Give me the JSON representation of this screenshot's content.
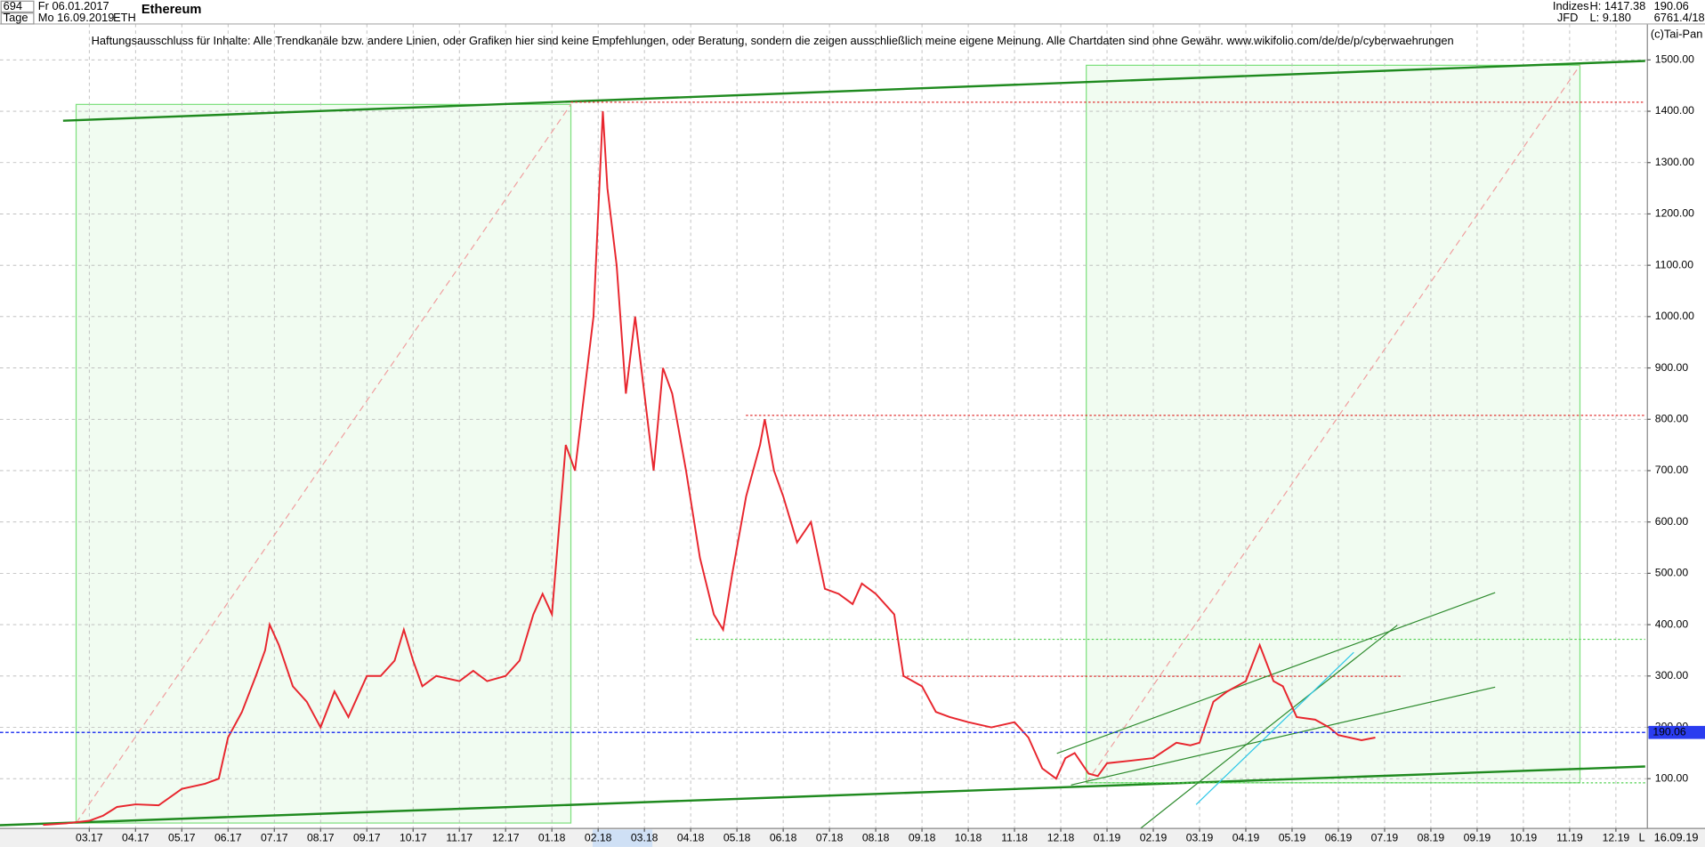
{
  "header": {
    "count": "694",
    "start": "Fr 06.01.2017",
    "period": "Tage",
    "end": "Mo 16.09.2019",
    "symbol": "ETH",
    "group": "Indizes",
    "source": "JFD",
    "high": "H: 1417.38",
    "low": "L: 9.180",
    "last": "190.06",
    "extra": "6761.4/18",
    "copyright": "(c)Tai-Pan"
  },
  "chart_data": {
    "type": "line",
    "title": "Ethereum",
    "annotation": "Haftungsausschluss für Inhalte: Alle Trendkanäle bzw. andere Linien, oder Grafiken hier sind keine Empfehlungen, oder Beratung, sondern die zeigen ausschließlich meine eigene Meinung. Alle Chartdaten sind ohne Gewähr.  www.wikifolio.com/de/de/p/cyberwaehrungen",
    "color": "#e8262e",
    "x": [
      1.0,
      1.5,
      2.0,
      2.3,
      2.6,
      3.0,
      3.5,
      4.0,
      4.5,
      4.8,
      5.0,
      5.3,
      5.6,
      5.8,
      5.9,
      6.1,
      6.4,
      6.7,
      7.0,
      7.3,
      7.6,
      8.0,
      8.3,
      8.6,
      8.8,
      9.0,
      9.2,
      9.5,
      10.0,
      10.3,
      10.6,
      11.0,
      11.3,
      11.6,
      11.8,
      12.0,
      12.3,
      12.5,
      12.7,
      12.9,
      13.0,
      13.1,
      13.2,
      13.4,
      13.6,
      13.8,
      14.0,
      14.2,
      14.4,
      14.6,
      14.9,
      15.2,
      15.5,
      15.7,
      15.9,
      16.2,
      16.5,
      16.6,
      16.8,
      17.0,
      17.3,
      17.6,
      17.9,
      18.2,
      18.5,
      18.7,
      19.0,
      19.4,
      19.6,
      20.0,
      20.3,
      20.6,
      21.0,
      21.5,
      22.0,
      22.3,
      22.6,
      22.9,
      23.1,
      23.3,
      23.6,
      23.8,
      24.0,
      24.5,
      25.0,
      25.5,
      25.8,
      26.0,
      26.3,
      26.6,
      27.0,
      27.3,
      27.6,
      27.8,
      28.1,
      28.5,
      28.8,
      29.0,
      29.5,
      29.8
    ],
    "values": [
      10,
      13,
      18,
      28,
      45,
      50,
      48,
      80,
      90,
      100,
      180,
      230,
      300,
      350,
      400,
      360,
      280,
      250,
      200,
      270,
      220,
      300,
      300,
      330,
      390,
      330,
      280,
      300,
      290,
      310,
      290,
      300,
      330,
      420,
      460,
      420,
      750,
      700,
      850,
      1000,
      1200,
      1400,
      1250,
      1100,
      850,
      1000,
      850,
      700,
      900,
      850,
      700,
      530,
      420,
      390,
      500,
      650,
      750,
      800,
      700,
      650,
      560,
      600,
      470,
      460,
      440,
      480,
      460,
      420,
      300,
      280,
      230,
      220,
      210,
      200,
      210,
      180,
      120,
      100,
      140,
      150,
      110,
      105,
      130,
      135,
      140,
      170,
      165,
      170,
      250,
      270,
      290,
      360,
      290,
      280,
      220,
      215,
      200,
      185,
      175,
      180
    ],
    "xlim": [
      0.07,
      35.68
    ],
    "ylim": [
      3,
      1570
    ],
    "xticks": [
      {
        "value": 2,
        "label": "03.17"
      },
      {
        "value": 3,
        "label": "04.17"
      },
      {
        "value": 4,
        "label": "05.17"
      },
      {
        "value": 5,
        "label": "06.17"
      },
      {
        "value": 6,
        "label": "07.17"
      },
      {
        "value": 7,
        "label": "08.17"
      },
      {
        "value": 8,
        "label": "09.17"
      },
      {
        "value": 9,
        "label": "10.17"
      },
      {
        "value": 10,
        "label": "11.17"
      },
      {
        "value": 11,
        "label": "12.17"
      },
      {
        "value": 12,
        "label": "01.18"
      },
      {
        "value": 13,
        "label": "02.18"
      },
      {
        "value": 14,
        "label": "03.18"
      },
      {
        "value": 15,
        "label": "04.18"
      },
      {
        "value": 16,
        "label": "05.18"
      },
      {
        "value": 17,
        "label": "06.18"
      },
      {
        "value": 18,
        "label": "07.18"
      },
      {
        "value": 19,
        "label": "08.18"
      },
      {
        "value": 20,
        "label": "09.18"
      },
      {
        "value": 21,
        "label": "10.18"
      },
      {
        "value": 22,
        "label": "11.18"
      },
      {
        "value": 23,
        "label": "12.18"
      },
      {
        "value": 24,
        "label": "01.19"
      },
      {
        "value": 25,
        "label": "02.19"
      },
      {
        "value": 26,
        "label": "03.19"
      },
      {
        "value": 27,
        "label": "04.19"
      },
      {
        "value": 28,
        "label": "05.19"
      },
      {
        "value": 29,
        "label": "06.19"
      },
      {
        "value": 30,
        "label": "07.19"
      },
      {
        "value": 31,
        "label": "08.19"
      },
      {
        "value": 32,
        "label": "09.19"
      },
      {
        "value": 33,
        "label": "10.19"
      },
      {
        "value": 34,
        "label": "11.19"
      },
      {
        "value": 35,
        "label": "12.19"
      }
    ],
    "yticks": [
      {
        "value": 100,
        "label": "100.00"
      },
      {
        "value": 200,
        "label": "200.00"
      },
      {
        "value": 300,
        "label": "300.00"
      },
      {
        "value": 400,
        "label": "400.00"
      },
      {
        "value": 500,
        "label": "500.00"
      },
      {
        "value": 600,
        "label": "600.00"
      },
      {
        "value": 700,
        "label": "700.00"
      },
      {
        "value": 800,
        "label": "800.00"
      },
      {
        "value": 900,
        "label": "900.00"
      },
      {
        "value": 1000,
        "label": "1000.00"
      },
      {
        "value": 1100,
        "label": "1100.00"
      },
      {
        "value": 1200,
        "label": "1200.00"
      },
      {
        "value": 1300,
        "label": "1300.00"
      },
      {
        "value": 1400,
        "label": "1400.00"
      },
      {
        "value": 1500,
        "label": "1500.00"
      }
    ],
    "grid": true,
    "current": {
      "value": 190.06,
      "label": "190.06",
      "color": "#2a3cf0"
    }
  },
  "footer": {
    "date": "16.09.19",
    "mode": "L"
  }
}
